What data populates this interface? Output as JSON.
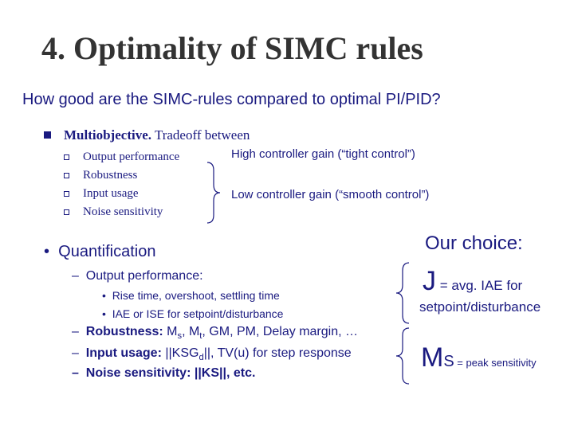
{
  "slide": {
    "title": "4. Optimality of SIMC rules",
    "question": "How good are the SIMC-rules compared to optimal PI/PID?"
  },
  "multiobjective": {
    "heading_bold": "Multiobjective.",
    "heading_rest": " Tradeoff between",
    "items": [
      "Output performance",
      "Robustness",
      "Input usage",
      "Noise sensitivity"
    ],
    "high_gain": "High controller gain (“tight control”)",
    "low_gain": "Low controller gain (“smooth control”)"
  },
  "quantification": {
    "heading": "Quantification",
    "output_perf": "Output performance:",
    "output_sub": [
      "Rise time, overshoot, settling time",
      "IAE or ISE for setpoint/disturbance"
    ],
    "robustness_label": "Robustness:",
    "robustness_text_a": " M",
    "robustness_sub_a": "s",
    "robustness_text_b": ", M",
    "robustness_sub_b": "t",
    "robustness_text_c": ", GM, PM, Delay margin, …",
    "input_label": "Input usage:",
    "input_text_a": " ||KSG",
    "input_sub": "d",
    "input_text_b": "||, TV(u) for step response",
    "noise_label": "Noise sensitivity:",
    "noise_text": "  ||KS||, etc."
  },
  "choice": {
    "heading": "Our choice:",
    "j_symbol": "J",
    "j_text_a": " = avg. IAE for",
    "j_text_b": "setpoint/disturbance",
    "ms_main": "M",
    "ms_sub": "S",
    "ms_text": " = peak sensitivity"
  },
  "colors": {
    "title": "#333333",
    "text": "#1a1a80"
  }
}
